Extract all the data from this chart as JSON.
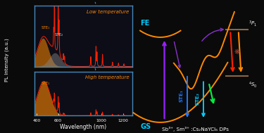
{
  "bg_color": "#0a0a0a",
  "left_panel_bg": "#0d0d18",
  "border_color": "#4488bb",
  "low_temp_label": "Low temperature",
  "high_temp_label": "High temperature",
  "xlabel": "Wavelength (nm)",
  "ylabel": "PL Intensity (a.u.)",
  "ste1_label": "STE₁",
  "ste2_label": "STE₂",
  "fe_label": "FE",
  "gs_label": "GS",
  "s0_label": "⁴S₀",
  "3p1_label": "³P₁",
  "subtitle": "Sb³⁺, Sm³⁺ :Cs₂NaYCl₆ DPs",
  "orange": "#ff8800",
  "cyan": "#00ccff",
  "red": "#ff2200",
  "green": "#00ee44",
  "purple": "#8833cc",
  "violet": "#9922ff",
  "blue": "#2277ff",
  "darkred": "#cc2200",
  "gray_fill": "#888888"
}
